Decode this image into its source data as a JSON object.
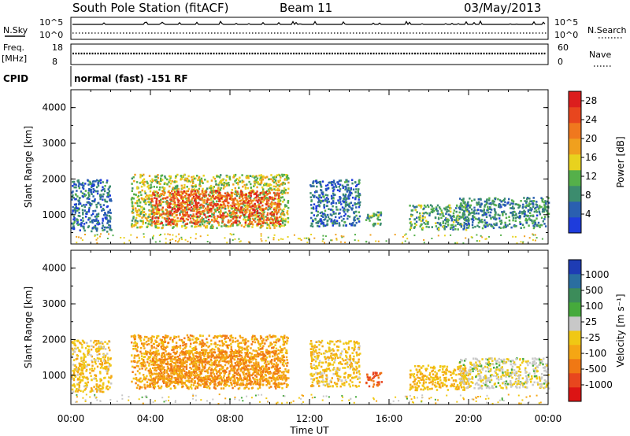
{
  "header": {
    "station": "South Pole Station (fitACF)",
    "beam": "Beam 11",
    "date": "03/May/2013"
  },
  "strip": {
    "nsky_label": "N.Sky",
    "nsky_ticks": [
      "10^5",
      "10^0"
    ],
    "nsearch_label": "N.Search",
    "nsearch_ticks": [
      "10^5",
      "10^0"
    ],
    "freq_label": "Freq.",
    "freq_unit": "[MHz]",
    "freq_ticks": [
      "18",
      "8"
    ],
    "nave_label": "Nave",
    "nave_ticks": [
      "60",
      "0"
    ],
    "cpid_label": "CPID",
    "cpid_text": "normal (fast) -151 RF"
  },
  "colors": {
    "power": [
      "#1e3cdc",
      "#2a5fb0",
      "#3c8c6e",
      "#55b04a",
      "#e8d21e",
      "#f0a01e",
      "#f0781e",
      "#e8461e",
      "#dc1e1e"
    ],
    "velocity": [
      "#dc1414",
      "#e8461e",
      "#f07814",
      "#f5a614",
      "#f0c814",
      "#c8c8c8",
      "#46aa3c",
      "#3c8c5a",
      "#2a6ea0",
      "#1e3cb4"
    ]
  },
  "chart_data": [
    {
      "type": "heatmap",
      "title": "Power",
      "ylabel": "Slant Range [km]",
      "xlabel": "Time UT",
      "x_ticks": [
        "00:00",
        "04:00",
        "08:00",
        "12:00",
        "16:00",
        "20:00",
        "00:00"
      ],
      "y_ticks": [
        "1000",
        "2000",
        "3000",
        "4000"
      ],
      "xlim_hours": [
        0,
        24
      ],
      "ylim_km": [
        180,
        4500
      ],
      "colorbar": {
        "label": "Power [dB]",
        "ticks": [
          "4",
          "8",
          "12",
          "16",
          "20",
          "24",
          "28"
        ],
        "range": [
          0,
          30
        ]
      },
      "echo_regions": [
        {
          "t0": 0.0,
          "t1": 2.0,
          "r0": 550,
          "r1": 2000,
          "value": 6
        },
        {
          "t0": 3.0,
          "t1": 10.9,
          "r0": 650,
          "r1": 2150,
          "value": 14
        },
        {
          "t0": 4.0,
          "t1": 10.5,
          "r0": 750,
          "r1": 1700,
          "value": 24
        },
        {
          "t0": 12.0,
          "t1": 14.5,
          "r0": 700,
          "r1": 2000,
          "value": 6
        },
        {
          "t0": 14.8,
          "t1": 15.6,
          "r0": 700,
          "r1": 1100,
          "value": 10
        },
        {
          "t0": 17.0,
          "t1": 20.0,
          "r0": 600,
          "r1": 1300,
          "value": 10
        },
        {
          "t0": 19.5,
          "t1": 24.0,
          "r0": 650,
          "r1": 1500,
          "value": 8
        }
      ]
    },
    {
      "type": "heatmap",
      "title": "Velocity",
      "ylabel": "Slant Range [km]",
      "xlabel": "Time UT",
      "x_ticks": [
        "00:00",
        "04:00",
        "08:00",
        "12:00",
        "16:00",
        "20:00",
        "00:00"
      ],
      "y_ticks": [
        "1000",
        "2000",
        "3000",
        "4000"
      ],
      "xlim_hours": [
        0,
        24
      ],
      "ylim_km": [
        180,
        4500
      ],
      "colorbar": {
        "label": "Velocity [m s⁻¹]",
        "ticks": [
          "1000",
          "500",
          "100",
          "25",
          "-25",
          "-100",
          "-500",
          "-1000"
        ],
        "range": [
          -1000,
          1000
        ]
      },
      "echo_regions": [
        {
          "t0": 0.0,
          "t1": 2.0,
          "r0": 550,
          "r1": 2000,
          "value": -150
        },
        {
          "t0": 3.0,
          "t1": 10.9,
          "r0": 650,
          "r1": 2150,
          "value": -300
        },
        {
          "t0": 4.0,
          "t1": 10.5,
          "r0": 750,
          "r1": 1700,
          "value": -400
        },
        {
          "t0": 12.0,
          "t1": 14.5,
          "r0": 700,
          "r1": 2000,
          "value": -150
        },
        {
          "t0": 14.8,
          "t1": 15.6,
          "r0": 700,
          "r1": 1100,
          "value": -600
        },
        {
          "t0": 17.0,
          "t1": 20.0,
          "r0": 600,
          "r1": 1300,
          "value": -200
        },
        {
          "t0": 19.5,
          "t1": 24.0,
          "r0": 650,
          "r1": 1500,
          "value": 50
        }
      ]
    }
  ]
}
